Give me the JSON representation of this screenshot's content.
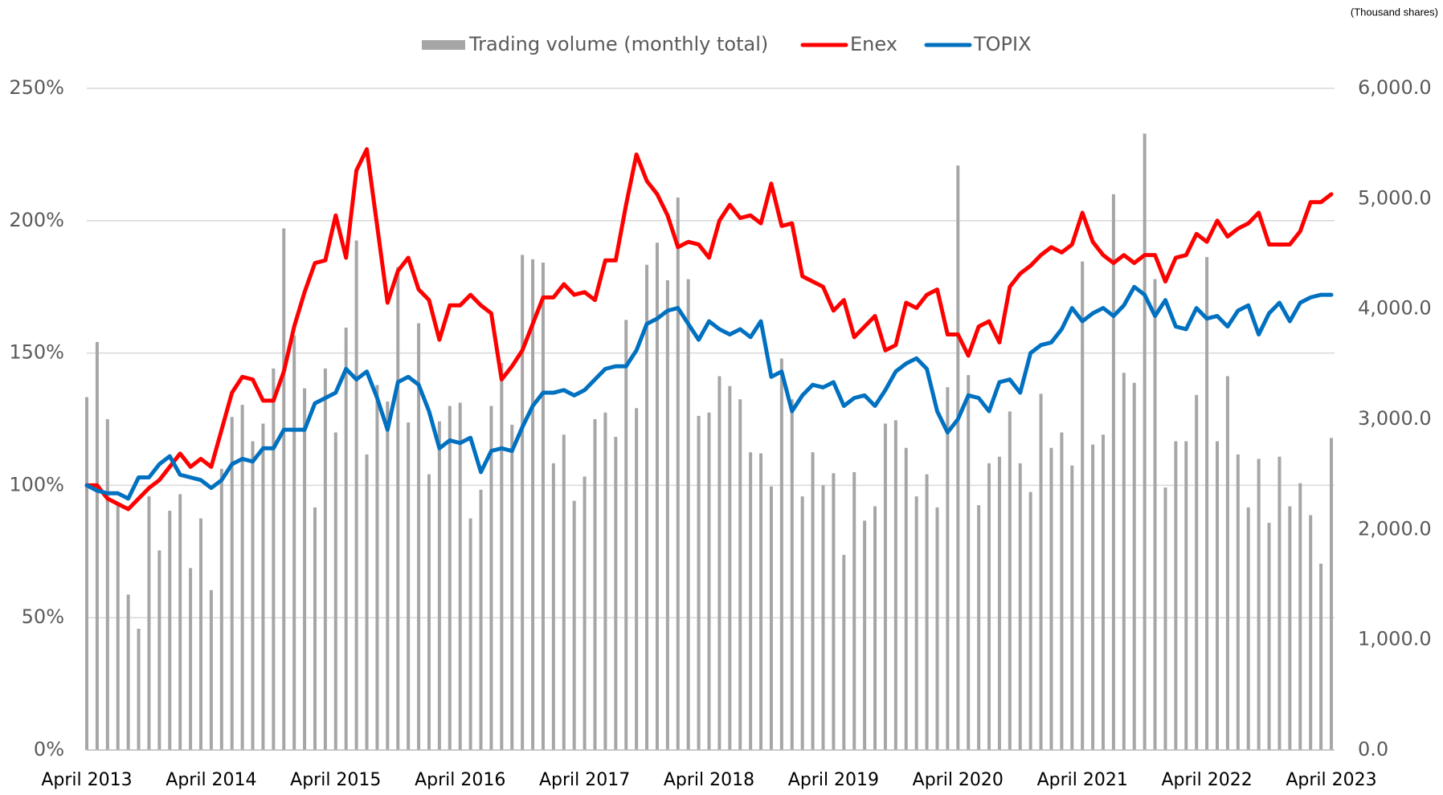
{
  "chart_data": {
    "type": "combo",
    "unit_note": "(Thousand shares)",
    "categories": [
      "April 2013",
      null,
      null,
      null,
      null,
      null,
      null,
      null,
      null,
      null,
      null,
      null,
      "April 2014",
      null,
      null,
      null,
      null,
      null,
      null,
      null,
      null,
      null,
      null,
      null,
      "April 2015",
      null,
      null,
      null,
      null,
      null,
      null,
      null,
      null,
      null,
      null,
      null,
      "April 2016",
      null,
      null,
      null,
      null,
      null,
      null,
      null,
      null,
      null,
      null,
      null,
      "April 2017",
      null,
      null,
      null,
      null,
      null,
      null,
      null,
      null,
      null,
      null,
      null,
      "April 2018",
      null,
      null,
      null,
      null,
      null,
      null,
      null,
      null,
      null,
      null,
      null,
      "April 2019",
      null,
      null,
      null,
      null,
      null,
      null,
      null,
      null,
      null,
      null,
      null,
      "April 2020",
      null,
      null,
      null,
      null,
      null,
      null,
      null,
      null,
      null,
      null,
      null,
      "April 2021",
      null,
      null,
      null,
      null,
      null,
      null,
      null,
      null,
      null,
      null,
      null,
      "April 2022",
      null,
      null,
      null,
      null,
      null,
      null,
      null,
      null,
      null,
      null,
      null,
      "April 2023"
    ],
    "series": [
      {
        "name": "Trading volume (monthly total)",
        "type": "bar",
        "axis": "y2",
        "color": "#a6a6a6",
        "values": [
          3200,
          3700,
          3000,
          2230,
          1410,
          1100,
          2300,
          1810,
          2170,
          2320,
          1650,
          2100,
          1450,
          2550,
          3020,
          3130,
          2800,
          2960,
          3460,
          4730,
          3760,
          3280,
          2200,
          3460,
          2880,
          3830,
          4620,
          2680,
          3310,
          3160,
          4380,
          2970,
          3870,
          2500,
          2980,
          3120,
          3150,
          2100,
          2360,
          3120,
          3510,
          2950,
          4490,
          4450,
          4420,
          2600,
          2860,
          2260,
          2480,
          3000,
          3060,
          2840,
          3900,
          3100,
          4400,
          4600,
          4260,
          5010,
          4270,
          3030,
          3060,
          3390,
          3300,
          3180,
          2700,
          2690,
          2390,
          3550,
          3180,
          2300,
          2700,
          2400,
          2510,
          1770,
          2520,
          2080,
          2210,
          2960,
          2990,
          2740,
          2300,
          2500,
          2200,
          3290,
          5300,
          3400,
          2220,
          2600,
          2660,
          3070,
          2600,
          2340,
          3230,
          2740,
          2880,
          2580,
          4430,
          2770,
          2860,
          5040,
          3420,
          3330,
          5590,
          4270,
          2380,
          2800,
          2800,
          3220,
          4470,
          2800,
          3390,
          2680,
          2200,
          2640,
          2060,
          2660,
          2210,
          2420,
          2130,
          1690,
          2830
        ]
      },
      {
        "name": "Enex",
        "type": "line",
        "color": "#ff0000",
        "values": [
          100,
          100,
          95,
          93,
          91,
          95,
          99,
          102,
          107,
          112,
          107,
          110,
          107,
          121,
          135,
          141,
          140,
          132,
          132,
          143,
          160,
          173,
          184,
          185,
          202,
          186,
          219,
          227,
          198,
          169,
          181,
          186,
          174,
          170,
          155,
          168,
          168,
          172,
          168,
          165,
          140,
          145,
          151,
          161,
          171,
          171,
          176,
          172,
          173,
          170,
          185,
          185,
          206,
          225,
          215,
          210,
          202,
          190,
          192,
          191,
          186,
          200,
          206,
          201,
          202,
          199,
          214,
          198,
          199,
          179,
          177,
          175,
          166,
          170,
          156,
          160,
          164,
          151,
          153,
          169,
          167,
          172,
          174,
          157,
          157,
          149,
          160,
          162,
          154,
          175,
          180,
          183,
          187,
          190,
          188,
          191,
          203,
          192,
          187,
          184,
          187,
          184,
          187,
          187,
          177,
          186,
          187,
          195,
          192,
          200,
          194,
          197,
          199,
          203,
          191,
          191,
          191,
          196,
          207,
          207,
          210
        ]
      },
      {
        "name": "TOPIX",
        "type": "line",
        "color": "#0070c0",
        "values": [
          100,
          98,
          97,
          97,
          95,
          103,
          103,
          108,
          111,
          104,
          103,
          102,
          99,
          102,
          108,
          110,
          109,
          114,
          114,
          121,
          121,
          121,
          131,
          133,
          135,
          144,
          140,
          143,
          133,
          121,
          139,
          141,
          138,
          128,
          114,
          117,
          116,
          118,
          105,
          113,
          114,
          113,
          122,
          130,
          135,
          135,
          136,
          134,
          136,
          140,
          144,
          145,
          145,
          151,
          161,
          163,
          166,
          167,
          161,
          155,
          162,
          159,
          157,
          159,
          156,
          162,
          141,
          143,
          128,
          134,
          138,
          137,
          139,
          130,
          133,
          134,
          130,
          136,
          143,
          146,
          148,
          144,
          128,
          120,
          125,
          134,
          133,
          128,
          139,
          140,
          135,
          150,
          153,
          154,
          159,
          167,
          162,
          165,
          167,
          164,
          168,
          175,
          172,
          164,
          170,
          160,
          159,
          167,
          163,
          164,
          160,
          166,
          168,
          157,
          165,
          169,
          162,
          169,
          171,
          172,
          172
        ]
      }
    ],
    "ylim": [
      0,
      250
    ],
    "yticks": [
      {
        "value": 0,
        "label": "0%"
      },
      {
        "value": 50,
        "label": "50%"
      },
      {
        "value": 100,
        "label": "100%"
      },
      {
        "value": 150,
        "label": "150%"
      },
      {
        "value": 200,
        "label": "200%"
      },
      {
        "value": 250,
        "label": "250%"
      }
    ],
    "y2lim": [
      0,
      6000
    ],
    "y2ticks": [
      {
        "value": 0,
        "label": "0.0"
      },
      {
        "value": 1000,
        "label": "1,000.0"
      },
      {
        "value": 2000,
        "label": "2,000.0"
      },
      {
        "value": 3000,
        "label": "3,000.0"
      },
      {
        "value": 4000,
        "label": "4,000.0"
      },
      {
        "value": 5000,
        "label": "5,000.0"
      },
      {
        "value": 6000,
        "label": "6,000.0"
      }
    ],
    "grid": true,
    "legend": "top"
  }
}
